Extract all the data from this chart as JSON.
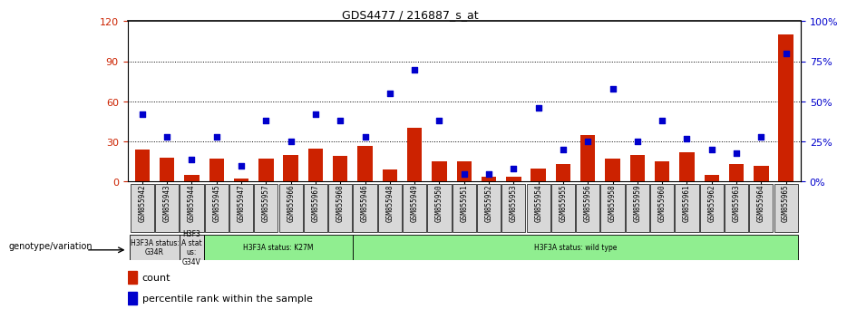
{
  "title": "GDS4477 / 216887_s_at",
  "samples": [
    "GSM855942",
    "GSM855943",
    "GSM855944",
    "GSM855945",
    "GSM855947",
    "GSM855957",
    "GSM855966",
    "GSM855967",
    "GSM855968",
    "GSM855946",
    "GSM855948",
    "GSM855949",
    "GSM855950",
    "GSM855951",
    "GSM855952",
    "GSM855953",
    "GSM855954",
    "GSM855955",
    "GSM855956",
    "GSM855958",
    "GSM855959",
    "GSM855960",
    "GSM855961",
    "GSM855962",
    "GSM855963",
    "GSM855964",
    "GSM855965"
  ],
  "counts": [
    24,
    18,
    5,
    17,
    2,
    17,
    20,
    25,
    19,
    27,
    9,
    40,
    15,
    15,
    4,
    4,
    10,
    13,
    35,
    17,
    20,
    15,
    22,
    5,
    13,
    12,
    110
  ],
  "percentile_ranks": [
    42,
    28,
    14,
    28,
    10,
    38,
    25,
    42,
    38,
    28,
    55,
    70,
    38,
    5,
    5,
    8,
    46,
    20,
    25,
    58,
    25,
    38,
    27,
    20,
    18,
    28,
    80
  ],
  "group_labels": [
    "H3F3A status:\nG34R",
    "H3F3\nA stat\nus:\nG34V",
    "H3F3A status: K27M",
    "H3F3A status: wild type"
  ],
  "group_spans": [
    2,
    1,
    6,
    18
  ],
  "group_colors": [
    "#d8d8d8",
    "#d8d8d8",
    "#90ee90",
    "#90ee90"
  ],
  "bar_color": "#cc2200",
  "dot_color": "#0000cc",
  "ylim_left": [
    0,
    120
  ],
  "ylim_right": [
    0,
    100
  ],
  "yticks_left": [
    0,
    30,
    60,
    90,
    120
  ],
  "ytick_labels_left": [
    "0",
    "30",
    "60",
    "90",
    "120"
  ],
  "yticks_right": [
    0,
    25,
    50,
    75,
    100
  ],
  "ytick_labels_right": [
    "0%",
    "25%",
    "50%",
    "75%",
    "100%"
  ],
  "legend_label_bar": "count",
  "legend_label_dot": "percentile rank within the sample",
  "genotype_label": "genotype/variation"
}
